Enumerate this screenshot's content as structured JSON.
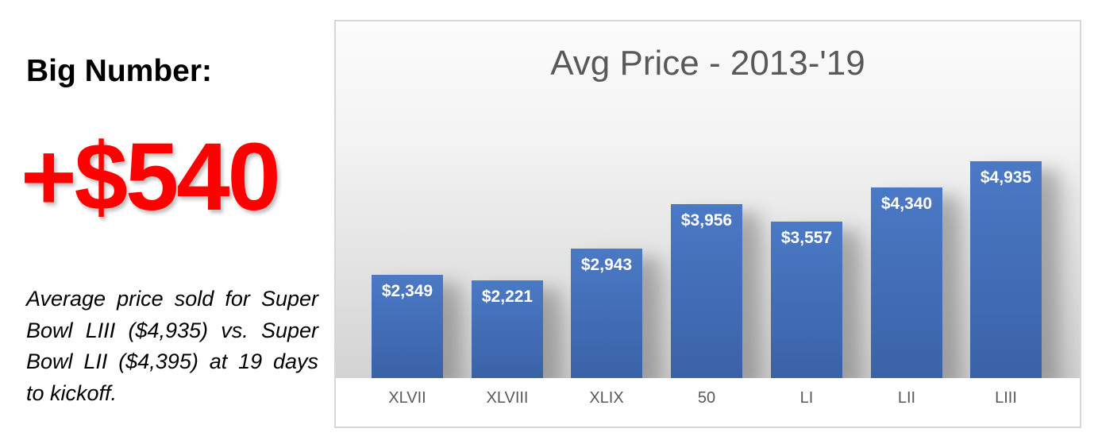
{
  "left_panel": {
    "heading": "Big Number:",
    "big_number": "+$540",
    "big_number_color": "#fe0000",
    "description_lines": [
      "Average price sold for Super",
      "Bowl LIII ($4,935) vs. Super",
      "Bowl LII ($4,395) at 19 days",
      "to kickoff."
    ]
  },
  "chart": {
    "title_color": "#595959",
    "category_label_color": "#595959",
    "bar_color_top": "#4b79c5",
    "bar_color_bottom": "#3a62a8",
    "value_label_color": "#ffffff",
    "border_color": "#d7d7d7"
  },
  "chart_data": {
    "type": "bar",
    "title": "Avg Price - 2013-'19",
    "categories": [
      "XLVII",
      "XLVIII",
      "XLIX",
      "50",
      "LI",
      "LII",
      "LIII"
    ],
    "values": [
      2349,
      2221,
      2943,
      3956,
      3557,
      4340,
      4935
    ],
    "value_labels": [
      "$2,349",
      "$2,221",
      "$2,943",
      "$3,956",
      "$3,557",
      "$4,340",
      "$4,935"
    ],
    "xlabel": "",
    "ylabel": "",
    "ylim": [
      0,
      5400
    ],
    "grid": false,
    "legend": false,
    "data_label_position": "inside-end"
  }
}
